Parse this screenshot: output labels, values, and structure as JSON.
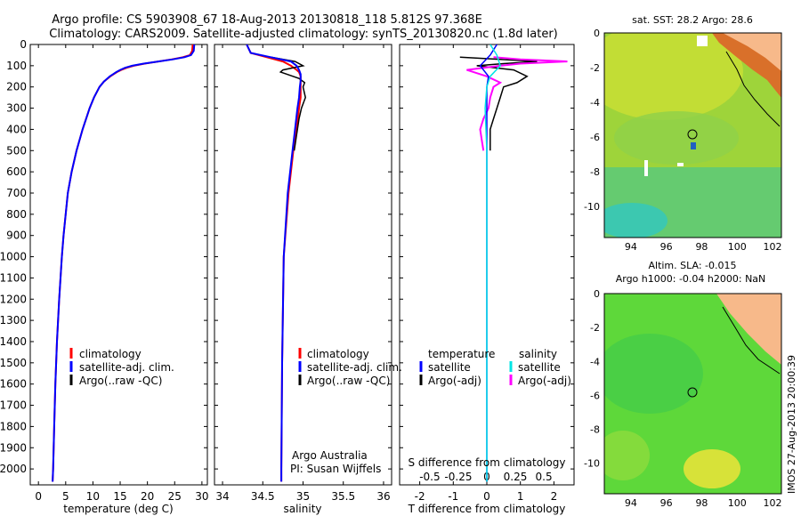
{
  "header": {
    "line1": "Argo profile: CS 5903908_67 18-Aug-2013 20130818_118 5.812S 97.368E",
    "line2": "Climatology: CARS2009. Satellite-adjusted climatology: synTS_20130820.nc (1.8d later)"
  },
  "colors": {
    "climatology": "#ff0000",
    "satellite": "#0000ff",
    "argo": "#000000",
    "sal_satellite": "#00e5e5",
    "sal_argo": "#ff00ff",
    "land": "#f7b98a"
  },
  "chart_data": [
    {
      "type": "line",
      "name": "temperature-profile",
      "xlabel": "temperature (deg C)",
      "ylabel": "",
      "xlim": [
        -1.5,
        31
      ],
      "ylim": [
        2075,
        0
      ],
      "xticks": [
        0,
        5,
        10,
        15,
        20,
        25,
        30
      ],
      "yticks": [
        0,
        100,
        200,
        300,
        400,
        500,
        600,
        700,
        800,
        900,
        1000,
        1100,
        1200,
        1300,
        1400,
        1500,
        1600,
        1700,
        1800,
        1900,
        2000
      ],
      "legend": [
        "climatology",
        "satellite-adj. clim.",
        "Argo(..raw -QC)"
      ],
      "depth": [
        0,
        30,
        50,
        60,
        70,
        80,
        90,
        100,
        110,
        120,
        130,
        150,
        175,
        200,
        250,
        300,
        400,
        500,
        600,
        700,
        800,
        900,
        1000,
        1200,
        1400,
        1600,
        1800,
        2000,
        2060
      ],
      "series": [
        {
          "name": "climatology",
          "values": [
            28.3,
            28.2,
            27.8,
            26.5,
            24.5,
            22.0,
            19.5,
            17.5,
            16.2,
            15.2,
            14.4,
            13.2,
            12.0,
            11.2,
            10.2,
            9.4,
            8.1,
            7.0,
            6.1,
            5.4,
            5.0,
            4.6,
            4.3,
            3.8,
            3.4,
            3.1,
            2.9,
            2.7,
            2.6
          ]
        },
        {
          "name": "satellite",
          "values": [
            28.6,
            28.5,
            28.0,
            26.8,
            24.7,
            22.0,
            19.3,
            17.2,
            15.9,
            15.0,
            14.3,
            13.1,
            12.0,
            11.2,
            10.2,
            9.4,
            8.1,
            7.0,
            6.1,
            5.4,
            5.0,
            4.6,
            4.3,
            3.8,
            3.4,
            3.1,
            2.9,
            2.7,
            2.6
          ]
        }
      ]
    },
    {
      "type": "line",
      "name": "salinity-profile",
      "xlabel": "salinity",
      "xlim": [
        33.9,
        36.1
      ],
      "ylim": [
        2075,
        0
      ],
      "xticks": [
        34,
        34.5,
        35,
        35.5,
        36
      ],
      "xticklabels": [
        "34",
        "34.5",
        "35",
        "35.5",
        "36"
      ],
      "legend": [
        "climatology",
        "satellite-adj. clim.",
        "Argo(..raw -QC)"
      ],
      "annotation": [
        "Argo Australia",
        "PI: Susan Wijffels"
      ],
      "depth": [
        0,
        40,
        60,
        80,
        100,
        120,
        130,
        140,
        150,
        170,
        200,
        250,
        300,
        400,
        500,
        700,
        1000,
        1500,
        2000,
        2060
      ],
      "series": [
        {
          "name": "climatology",
          "values": [
            34.3,
            34.35,
            34.55,
            34.75,
            34.85,
            34.92,
            34.95,
            34.96,
            34.97,
            34.97,
            34.97,
            34.97,
            34.95,
            34.92,
            34.88,
            34.82,
            34.76,
            34.74,
            34.73,
            34.73
          ]
        },
        {
          "name": "satellite",
          "values": [
            34.3,
            34.35,
            34.6,
            34.85,
            34.92,
            34.95,
            34.96,
            34.97,
            34.97,
            34.97,
            34.96,
            34.95,
            34.93,
            34.9,
            34.87,
            34.81,
            34.76,
            34.74,
            34.73,
            34.73
          ]
        },
        {
          "name": "argo",
          "depth": [
            60,
            80,
            100,
            120,
            130,
            140,
            160,
            180,
            200,
            250,
            300,
            350,
            400,
            450,
            500
          ],
          "values": [
            34.6,
            34.9,
            35.0,
            34.75,
            34.72,
            34.8,
            34.95,
            35.02,
            35.0,
            35.03,
            34.98,
            34.95,
            34.93,
            34.91,
            34.89
          ]
        }
      ]
    },
    {
      "type": "line",
      "name": "difference-profile",
      "xlabel": "T difference from climatology",
      "xlim": [
        -2.6,
        2.6
      ],
      "ylim": [
        2075,
        0
      ],
      "xticks": [
        -2,
        -1,
        0,
        1,
        2
      ],
      "top_label": "S difference from climatology",
      "top_ticks": [
        "-0.5",
        "-0.25",
        "0",
        "0.25",
        "0.5"
      ],
      "top_tick_values": [
        -1.7,
        -0.85,
        0,
        0.85,
        1.7
      ],
      "legend_titles": [
        "temperature",
        "salinity"
      ],
      "legend": [
        "satellite",
        "Argo(-adj)",
        "satellite",
        "Argo(-adj)"
      ],
      "series": [
        {
          "name": "temperature satellite",
          "depth": [
            0,
            50,
            100,
            150,
            200,
            300,
            500,
            1000,
            2060
          ],
          "values": [
            0.3,
            0.1,
            -0.2,
            0.05,
            0.0,
            0.0,
            0.0,
            0.0,
            0.0
          ]
        },
        {
          "name": "temperature Argo",
          "depth": [
            60,
            70,
            80,
            90,
            100,
            120,
            150,
            180,
            200,
            250,
            300,
            350,
            400,
            500
          ],
          "values": [
            -0.8,
            0.4,
            1.5,
            0.5,
            -0.3,
            0.8,
            1.2,
            0.9,
            0.5,
            0.4,
            0.3,
            0.2,
            0.1,
            0.1
          ]
        },
        {
          "name": "salinity satellite",
          "depth": [
            0,
            50,
            100,
            150,
            200,
            300,
            500,
            1000,
            2060
          ],
          "values": [
            0.1,
            0.3,
            0.4,
            0.1,
            0.0,
            -0.05,
            0.0,
            0.0,
            0.0
          ]
        },
        {
          "name": "salinity Argo",
          "depth": [
            60,
            70,
            80,
            90,
            100,
            120,
            150,
            180,
            200,
            250,
            300,
            350,
            400,
            450,
            500
          ],
          "values": [
            0.2,
            1.0,
            2.4,
            1.0,
            0.4,
            -0.6,
            0.0,
            0.4,
            0.2,
            0.1,
            0.05,
            -0.1,
            -0.2,
            -0.15,
            -0.1
          ]
        }
      ]
    },
    {
      "type": "heatmap",
      "name": "sst-map",
      "title": "sat. SST: 28.2 Argo: 28.6",
      "xlim": [
        92.5,
        102.5
      ],
      "ylim": [
        -11.8,
        0
      ],
      "xticks": [
        94,
        96,
        98,
        100,
        102
      ],
      "yticks": [
        0,
        -2,
        -4,
        -6,
        -8,
        -10
      ],
      "marker": {
        "lon": 97.37,
        "lat": -5.81
      }
    },
    {
      "type": "heatmap",
      "name": "sla-map",
      "title": "Altim. SLA: -0.015",
      "subtitle": "Argo h1000: -0.04 h2000: NaN",
      "xlim": [
        92.5,
        102.5
      ],
      "ylim": [
        -11.8,
        0
      ],
      "xticks": [
        94,
        96,
        98,
        100,
        102
      ],
      "yticks": [
        0,
        -2,
        -4,
        -6,
        -8,
        -10
      ],
      "marker": {
        "lon": 97.37,
        "lat": -5.81
      }
    }
  ],
  "footer": {
    "timestamp": "IMOS 27-Aug-2013 20:00:39"
  }
}
